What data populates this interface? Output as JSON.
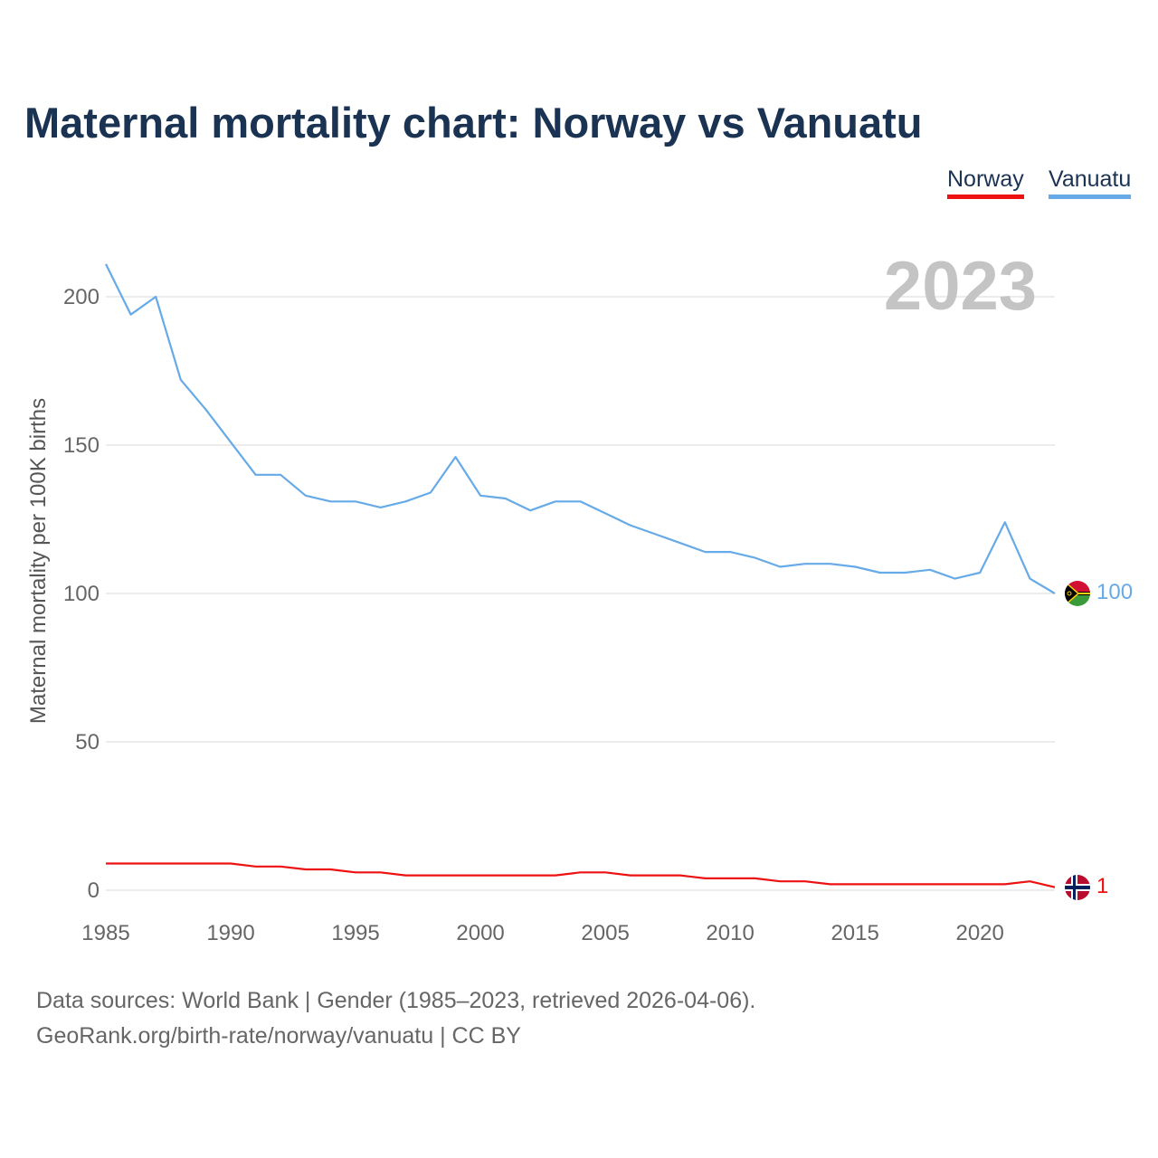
{
  "title": "Maternal mortality chart: Norway vs Vanuatu",
  "source": {
    "line1": "Data sources: World Bank | Gender (1985–2023, retrieved 2026-04-06).",
    "line2": "GeoRank.org/birth-rate/norway/vanuatu | CC BY"
  },
  "colors": {
    "norway": "#ee1111",
    "vanuatu": "#66aae8",
    "grid": "#e6e6e6",
    "title": "#1b3353"
  },
  "chart_data": {
    "type": "line",
    "title": "Maternal mortality chart: Norway vs Vanuatu",
    "xlabel": "",
    "ylabel": "Maternal mortality per 100K births",
    "year_label": "2023",
    "x": [
      1985,
      1986,
      1987,
      1988,
      1989,
      1990,
      1991,
      1992,
      1993,
      1994,
      1995,
      1996,
      1997,
      1998,
      1999,
      2000,
      2001,
      2002,
      2003,
      2004,
      2005,
      2006,
      2007,
      2008,
      2009,
      2010,
      2011,
      2012,
      2013,
      2014,
      2015,
      2016,
      2017,
      2018,
      2019,
      2020,
      2021,
      2022,
      2023
    ],
    "xlim": [
      1985,
      2023
    ],
    "ylim": [
      0,
      215
    ],
    "xticks": [
      1985,
      1990,
      1995,
      2000,
      2005,
      2010,
      2015,
      2020
    ],
    "yticks": [
      0,
      50,
      100,
      150,
      200
    ],
    "series": [
      {
        "name": "Norway",
        "flag": "norway",
        "end_label": "1",
        "values": [
          9,
          9,
          9,
          9,
          9,
          9,
          8,
          8,
          7,
          7,
          6,
          6,
          5,
          5,
          5,
          5,
          5,
          5,
          5,
          6,
          6,
          5,
          5,
          5,
          4,
          4,
          4,
          3,
          3,
          2,
          2,
          2,
          2,
          2,
          2,
          2,
          2,
          3,
          1
        ]
      },
      {
        "name": "Vanuatu",
        "flag": "vanuatu",
        "end_label": "100",
        "values": [
          211,
          194,
          200,
          172,
          162,
          151,
          140,
          140,
          133,
          131,
          131,
          129,
          131,
          134,
          146,
          133,
          132,
          128,
          131,
          131,
          127,
          123,
          120,
          117,
          114,
          114,
          112,
          109,
          110,
          110,
          109,
          107,
          107,
          108,
          105,
          107,
          124,
          105,
          100
        ]
      }
    ]
  }
}
